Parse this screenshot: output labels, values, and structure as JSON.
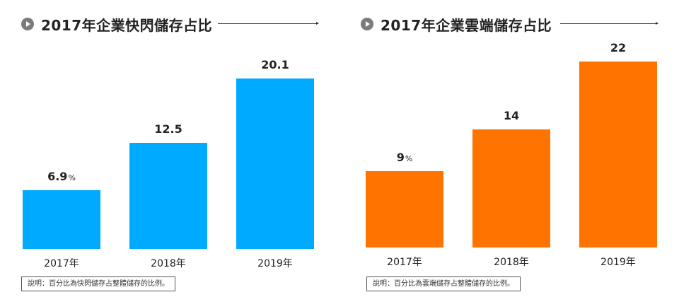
{
  "chart_data": [
    {
      "type": "bar",
      "title": "2017年企業快閃儲存占比",
      "categories": [
        "2017年",
        "2018年",
        "2019年"
      ],
      "values": [
        6.9,
        12.5,
        20.1
      ],
      "value_labels": [
        "6.9",
        "12.5",
        "20.1"
      ],
      "first_value_unit": "%",
      "ylim": [
        0,
        22
      ],
      "color": "#00aaff",
      "grid": false,
      "note": "說明：百分比為快閃儲存占整體儲存的比例。"
    },
    {
      "type": "bar",
      "title": "2017年企業雲端儲存占比",
      "categories": [
        "2017年",
        "2018年",
        "2019年"
      ],
      "values": [
        9,
        14,
        22
      ],
      "value_labels": [
        "9",
        "14",
        "22"
      ],
      "first_value_unit": "%",
      "ylim": [
        0,
        22
      ],
      "color": "#ff7300",
      "grid": false,
      "note": "說明：百分比為雲端儲存占整體儲存的比例。"
    }
  ]
}
